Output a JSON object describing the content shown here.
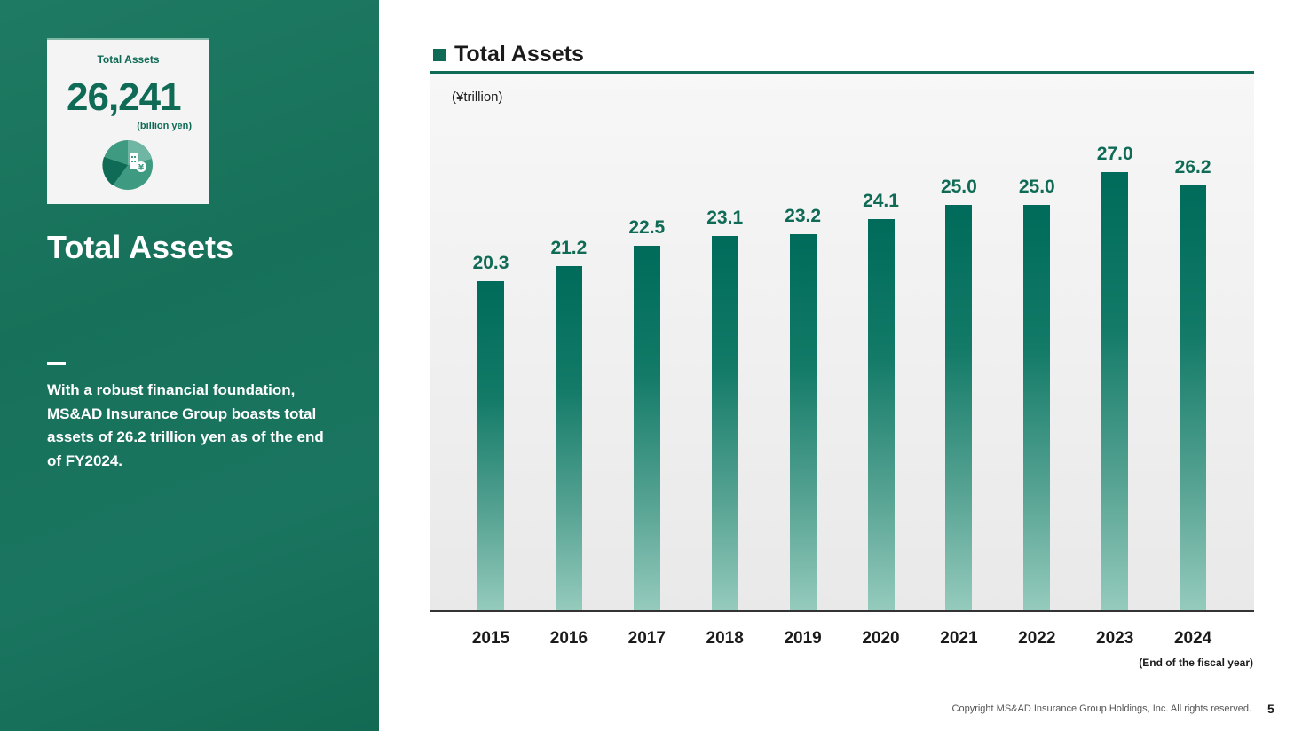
{
  "left_panel": {
    "kpi_label": "Total Assets",
    "kpi_value": "26,241",
    "kpi_unit": "(billion yen)",
    "kpi_icon": "pie-chart-building-yen-icon",
    "title": "Total Assets",
    "description": "With a robust financial foundation, MS&AD Insurance Group boasts total assets of 26.2 trillion yen as of the end of FY2024."
  },
  "chart_data": {
    "type": "bar",
    "title": "Total Assets",
    "unit_label": "(¥trillion)",
    "xlabel": "(End of the fiscal year)",
    "ylabel": "",
    "categories": [
      "2015",
      "2016",
      "2017",
      "2018",
      "2019",
      "2020",
      "2021",
      "2022",
      "2023",
      "2024"
    ],
    "values": [
      20.3,
      21.2,
      22.5,
      23.1,
      23.2,
      24.1,
      25.0,
      25.0,
      27.0,
      26.2
    ],
    "value_labels": [
      "20.3",
      "21.2",
      "22.5",
      "23.1",
      "23.2",
      "24.1",
      "25.0",
      "25.0",
      "27.0",
      "26.2"
    ],
    "ylim": [
      0,
      27.0
    ],
    "grid": false,
    "legend": "none",
    "bar_color": "#0f6b55"
  },
  "footer": {
    "copyright": "Copyright MS&AD Insurance Group Holdings, Inc. All rights reserved.",
    "page_number": "5"
  },
  "colors": {
    "brand_green": "#0f6b55",
    "panel_green": "#1a7560"
  }
}
